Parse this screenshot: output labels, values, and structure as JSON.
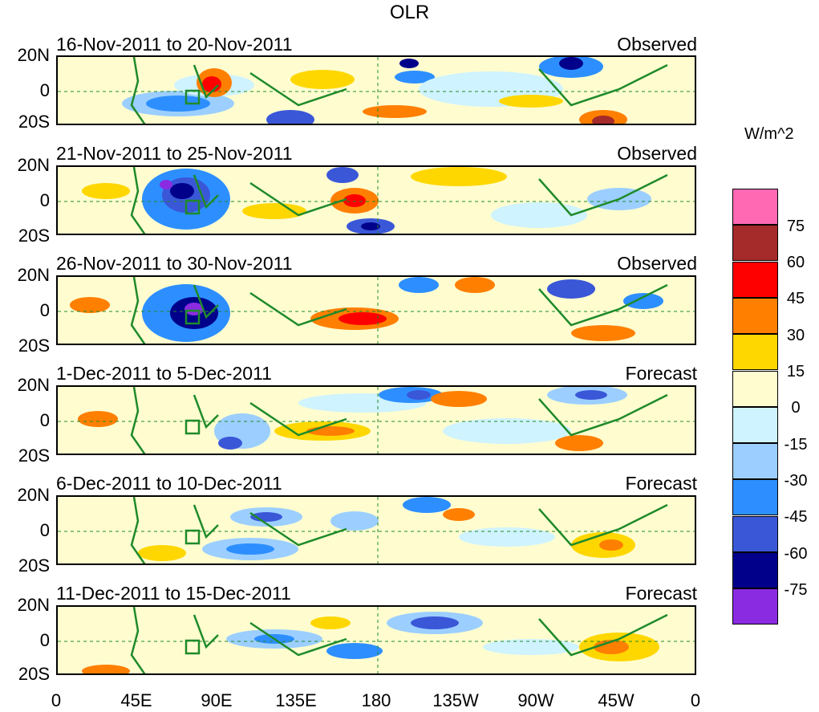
{
  "title": "OLR",
  "panels": [
    {
      "period": "16-Nov-2011 to 20-Nov-2011",
      "type": "Observed"
    },
    {
      "period": "21-Nov-2011 to 25-Nov-2011",
      "type": "Observed"
    },
    {
      "period": "26-Nov-2011 to 30-Nov-2011",
      "type": "Observed"
    },
    {
      "period": "1-Dec-2011 to 5-Dec-2011",
      "type": "Forecast"
    },
    {
      "period": "6-Dec-2011 to 10-Dec-2011",
      "type": "Forecast"
    },
    {
      "period": "11-Dec-2011 to 15-Dec-2011",
      "type": "Forecast"
    }
  ],
  "y_axis_labels": [
    "20N",
    "0",
    "20S"
  ],
  "x_axis_labels": [
    "0",
    "45E",
    "90E",
    "135E",
    "180",
    "135W",
    "90W",
    "45W",
    "0"
  ],
  "colorbar": {
    "title": "W/m^2",
    "labels": [
      "75",
      "60",
      "45",
      "30",
      "15",
      "0",
      "-15",
      "-30",
      "-45",
      "-60",
      "-75"
    ],
    "colors": [
      "#ff69b4",
      "#a52a2a",
      "#ff0000",
      "#ff7f00",
      "#ffd700",
      "#fffdd0",
      "#cff3ff",
      "#9ccfff",
      "#2d8fff",
      "#3a57d8",
      "#00008b",
      "#8a2be2"
    ]
  }
}
